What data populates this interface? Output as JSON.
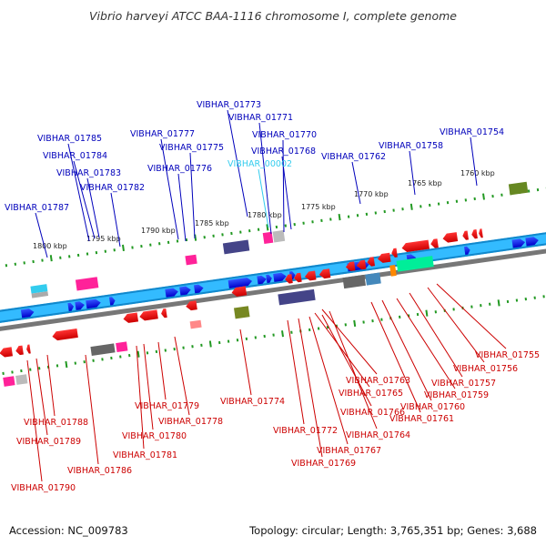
{
  "title": "Vibrio harveyi ATCC BAA-1116 chromosome I, complete genome",
  "accession": "Accession: NC_009783",
  "summary": "Topology: circular; Length: 3,765,351 bp; Genes: 3,688",
  "colors": {
    "upper_label": "#0000bb",
    "lower_label": "#cc0000",
    "rna_label": "#33ccee",
    "cds_forward": "#0000ee",
    "cds_reverse": "#ee0000",
    "backbone": "#33bbff"
  },
  "ticks": [
    {
      "label": "1800 kbp"
    },
    {
      "label": "1795 kbp"
    },
    {
      "label": "1790 kbp"
    },
    {
      "label": "1785 kbp"
    },
    {
      "label": "1780 kbp"
    },
    {
      "label": "1775 kbp"
    },
    {
      "label": "1770 kbp"
    },
    {
      "label": "1765 kbp"
    },
    {
      "label": "1760 kbp"
    }
  ],
  "upper_labels": [
    {
      "text": "VIBHAR_01773",
      "type": "cds"
    },
    {
      "text": "VIBHAR_01771",
      "type": "cds"
    },
    {
      "text": "VIBHAR_01777",
      "type": "cds"
    },
    {
      "text": "VIBHAR_01770",
      "type": "cds"
    },
    {
      "text": "VIBHAR_01785",
      "type": "cds"
    },
    {
      "text": "VIBHAR_01775",
      "type": "cds"
    },
    {
      "text": "VIBHAR_01768",
      "type": "cds"
    },
    {
      "text": "VIBHAR_01754",
      "type": "cds"
    },
    {
      "text": "VIBHAR_01758",
      "type": "cds"
    },
    {
      "text": "VIBHAR_01784",
      "type": "cds"
    },
    {
      "text": "VIBHAR_01762",
      "type": "cds"
    },
    {
      "text": "VIBHAR_00002",
      "type": "rna"
    },
    {
      "text": "VIBHAR_01776",
      "type": "cds"
    },
    {
      "text": "VIBHAR_01783",
      "type": "cds"
    },
    {
      "text": "VIBHAR_01782",
      "type": "cds"
    },
    {
      "text": "VIBHAR_01787",
      "type": "cds"
    }
  ],
  "lower_labels": [
    {
      "text": "VIBHAR_01755"
    },
    {
      "text": "VIBHAR_01756"
    },
    {
      "text": "VIBHAR_01763"
    },
    {
      "text": "VIBHAR_01757"
    },
    {
      "text": "VIBHAR_01765"
    },
    {
      "text": "VIBHAR_01759"
    },
    {
      "text": "VIBHAR_01774"
    },
    {
      "text": "VIBHAR_01779"
    },
    {
      "text": "VIBHAR_01760"
    },
    {
      "text": "VIBHAR_01766"
    },
    {
      "text": "VIBHAR_01778"
    },
    {
      "text": "VIBHAR_01761"
    },
    {
      "text": "VIBHAR_01788"
    },
    {
      "text": "VIBHAR_01772"
    },
    {
      "text": "VIBHAR_01780"
    },
    {
      "text": "VIBHAR_01764"
    },
    {
      "text": "VIBHAR_01789"
    },
    {
      "text": "VIBHAR_01767"
    },
    {
      "text": "VIBHAR_01781"
    },
    {
      "text": "VIBHAR_01769"
    },
    {
      "text": "VIBHAR_01786"
    },
    {
      "text": "VIBHAR_01790"
    }
  ]
}
